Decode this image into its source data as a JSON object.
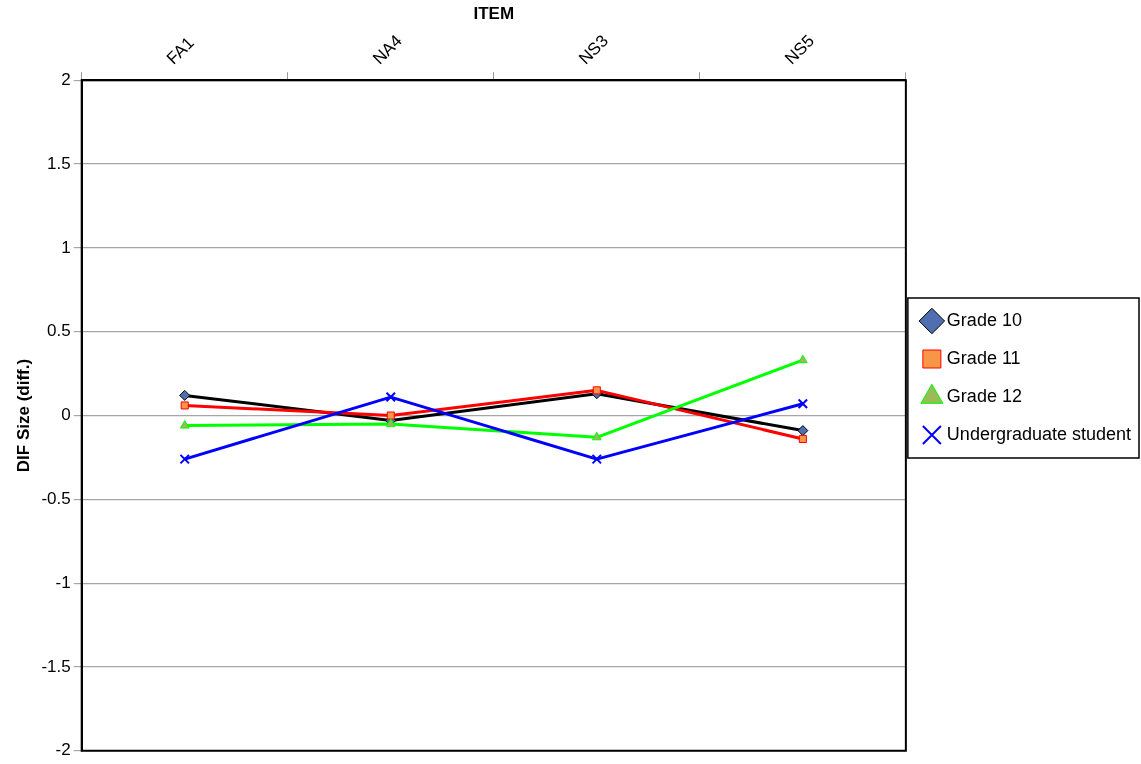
{
  "chart_data": {
    "type": "line",
    "xlabel": "ITEM",
    "ylabel": "DIF Size (diff.)",
    "categories": [
      "FA1",
      "NA4",
      "NS3",
      "NS5"
    ],
    "series": [
      {
        "name": "Grade 10",
        "color": "#000000",
        "marker": "diamond",
        "values": [
          0.12,
          -0.03,
          0.13,
          -0.09
        ]
      },
      {
        "name": "Grade 11",
        "color": "#ff0000",
        "marker": "square",
        "values": [
          0.06,
          0.0,
          0.15,
          -0.14
        ]
      },
      {
        "name": "Grade 12",
        "color": "#00ff00",
        "marker": "triangle",
        "values": [
          -0.06,
          -0.05,
          -0.13,
          0.33
        ]
      },
      {
        "name": "Undergraduate student",
        "color": "#0000ff",
        "marker": "cross",
        "values": [
          -0.26,
          0.11,
          -0.26,
          0.07
        ]
      }
    ],
    "ylim": [
      -2,
      2
    ],
    "yticks": [
      -2,
      -1.5,
      -1,
      -0.5,
      0,
      0.5,
      1,
      1.5,
      2
    ],
    "grid": "y",
    "legend": "right",
    "line_style": "solid"
  }
}
